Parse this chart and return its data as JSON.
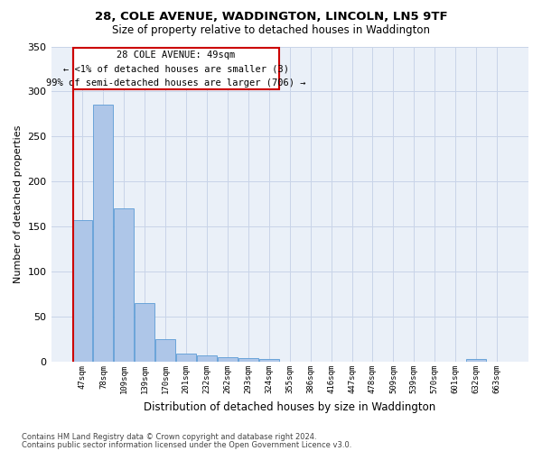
{
  "title1": "28, COLE AVENUE, WADDINGTON, LINCOLN, LN5 9TF",
  "title2": "Size of property relative to detached houses in Waddington",
  "xlabel": "Distribution of detached houses by size in Waddington",
  "ylabel": "Number of detached properties",
  "bar_color": "#aec6e8",
  "bar_edge_color": "#5b9bd5",
  "annotation_line_color": "#cc0000",
  "annotation_text_line1": "28 COLE AVENUE: 49sqm",
  "annotation_text_line2": "← <1% of detached houses are smaller (3)",
  "annotation_text_line3": "99% of semi-detached houses are larger (706) →",
  "grid_color": "#c8d4e8",
  "background_color": "#eaf0f8",
  "tick_labels": [
    "47sqm",
    "78sqm",
    "109sqm",
    "139sqm",
    "170sqm",
    "201sqm",
    "232sqm",
    "262sqm",
    "293sqm",
    "324sqm",
    "355sqm",
    "386sqm",
    "416sqm",
    "447sqm",
    "478sqm",
    "509sqm",
    "539sqm",
    "570sqm",
    "601sqm",
    "632sqm",
    "663sqm"
  ],
  "bar_values": [
    157,
    285,
    170,
    65,
    25,
    9,
    7,
    5,
    4,
    3,
    0,
    0,
    0,
    0,
    0,
    0,
    0,
    0,
    0,
    3,
    0
  ],
  "ylim": [
    0,
    350
  ],
  "yticks": [
    0,
    50,
    100,
    150,
    200,
    250,
    300,
    350
  ],
  "footer_line1": "Contains HM Land Registry data © Crown copyright and database right 2024.",
  "footer_line2": "Contains public sector information licensed under the Open Government Licence v3.0."
}
